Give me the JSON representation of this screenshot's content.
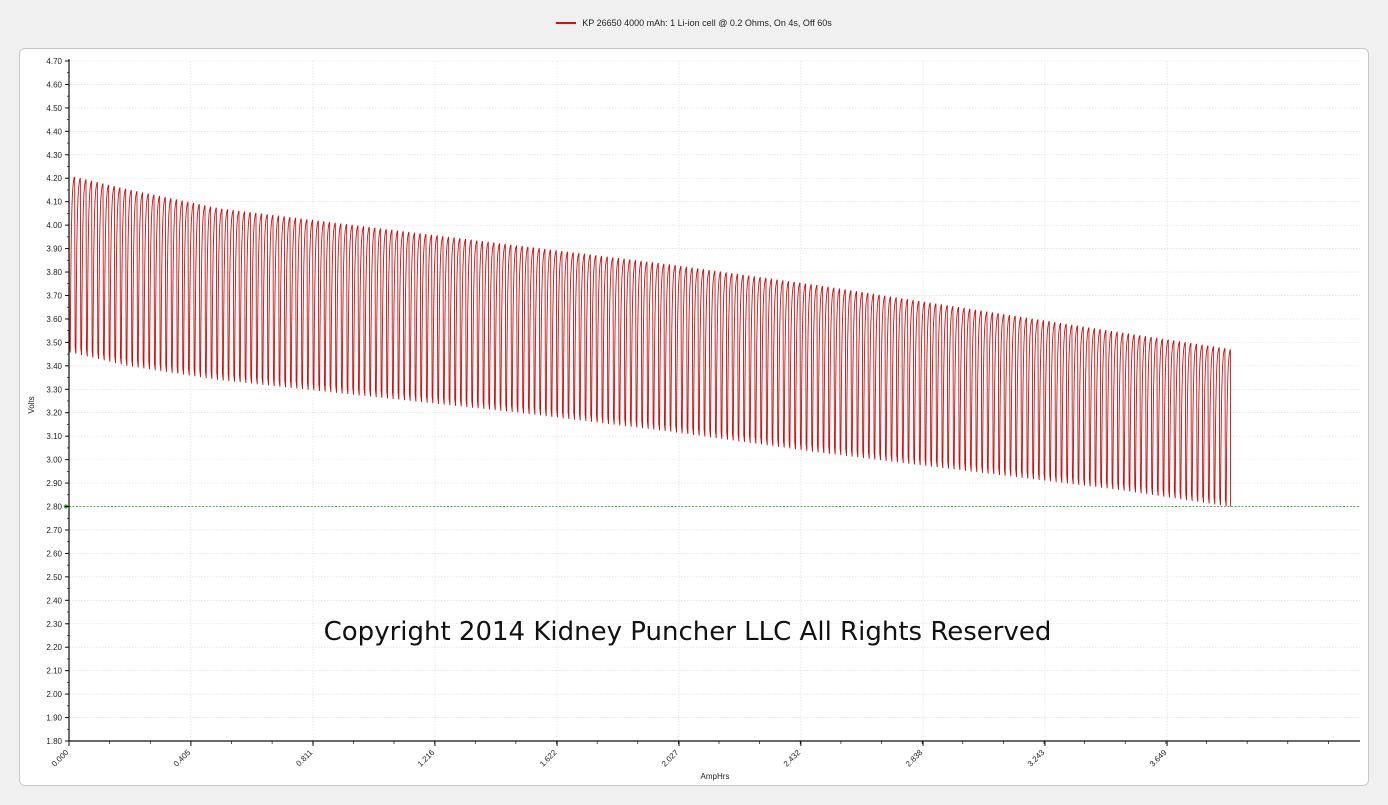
{
  "legend": {
    "label": "KP 26650 4000 mAh: 1 Li-ion cell @ 0.2 Ohms, On 4s, Off 60s",
    "color": "#cc1111"
  },
  "copyright": "Copyright 2014 Kidney Puncher LLC  All Rights Reserved",
  "chart_data": {
    "type": "line",
    "title": "",
    "xlabel": "AmpHrs",
    "ylabel": "Volts",
    "xlim": [
      0,
      4.29
    ],
    "ylim": [
      1.8,
      4.7
    ],
    "x_ticks": [
      "0.000",
      "0.405",
      "0.811",
      "1.216",
      "1.622",
      "2.027",
      "2.432",
      "2.838",
      "3.243",
      "3.649"
    ],
    "y_ticks": [
      "4.70",
      "4.60",
      "4.50",
      "4.40",
      "4.30",
      "4.20",
      "4.10",
      "4.00",
      "3.90",
      "3.80",
      "3.70",
      "3.60",
      "3.50",
      "3.40",
      "3.30",
      "3.20",
      "3.10",
      "3.00",
      "2.90",
      "2.80",
      "2.70",
      "2.60",
      "2.50",
      "2.40",
      "2.30",
      "2.20",
      "2.10",
      "2.00",
      "1.90",
      "1.80"
    ],
    "grid": true,
    "legend_position": "top-center",
    "series": [
      {
        "name": "KP 26650 4000 mAh: 1 Li-ion cell @ 0.2 Ohms, On 4s, Off 60s",
        "color": "#cc1111",
        "pulse_count": 205,
        "x_end": 3.86,
        "rest_voltage_envelope": {
          "x": [
            0.0,
            0.2,
            0.5,
            1.0,
            1.5,
            2.0,
            2.5,
            3.0,
            3.5,
            3.86
          ],
          "y": [
            4.21,
            4.15,
            4.07,
            3.99,
            3.91,
            3.83,
            3.74,
            3.64,
            3.54,
            3.47
          ]
        },
        "load_voltage_envelope": {
          "x": [
            0.0,
            0.2,
            0.5,
            1.0,
            1.5,
            2.0,
            2.5,
            3.0,
            3.5,
            3.86
          ],
          "y": [
            3.46,
            3.4,
            3.34,
            3.27,
            3.2,
            3.12,
            3.03,
            2.95,
            2.87,
            2.8
          ]
        }
      }
    ],
    "reference_line": {
      "y": 2.8,
      "color": "#2e9e2e"
    }
  }
}
